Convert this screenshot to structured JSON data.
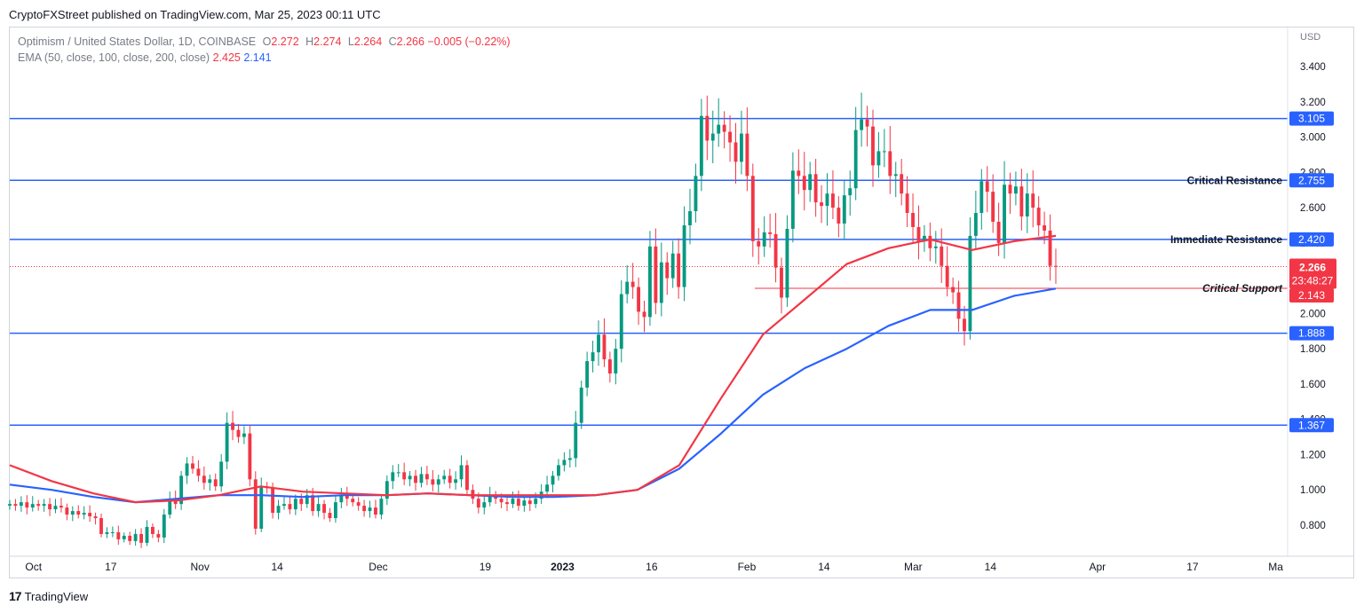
{
  "header": {
    "publish_text": "CryptoFXStreet published on TradingView.com, Mar 25, 2023 00:11 UTC"
  },
  "legend": {
    "symbol": "Optimism / United States Dollar, 1D, COINBASE",
    "o_label": "O",
    "o_value": "2.272",
    "h_label": "H",
    "h_value": "2.274",
    "l_label": "L",
    "l_value": "2.264",
    "c_label": "C",
    "c_value": "2.266",
    "change": "−0.005 (−0.22%)",
    "ema_label": "EMA (50, close, 100, close, 200, close)",
    "ema_val_1": "2.425",
    "ema_val_2": "2.141"
  },
  "footer": {
    "brand": "TradingView"
  },
  "colors": {
    "up": "#089981",
    "down": "#f23645",
    "level": "#2962ff",
    "ema_fast": "#f23645",
    "ema_slow": "#2962ff"
  },
  "chart_data": {
    "type": "candlestick",
    "title": "Optimism / United States Dollar, 1D, COINBASE",
    "currency_label": "USD",
    "ylim": [
      0.65,
      3.5
    ],
    "y_ticks": [
      "0.800",
      "1.000",
      "1.200",
      "1.400",
      "1.600",
      "1.800",
      "2.000",
      "2.200",
      "2.400",
      "2.600",
      "2.800",
      "3.000",
      "3.200",
      "3.400"
    ],
    "x_ticks": [
      {
        "label": "Oct",
        "day": 4
      },
      {
        "label": "17",
        "day": 17
      },
      {
        "label": "Nov",
        "day": 32
      },
      {
        "label": "14",
        "day": 45
      },
      {
        "label": "Dec",
        "day": 62
      },
      {
        "label": "19",
        "day": 80
      },
      {
        "label": "2023",
        "day": 93
      },
      {
        "label": "16",
        "day": 108
      },
      {
        "label": "Feb",
        "day": 124
      },
      {
        "label": "14",
        "day": 137
      },
      {
        "label": "Mar",
        "day": 152
      },
      {
        "label": "14",
        "day": 165
      },
      {
        "label": "Apr",
        "day": 183
      },
      {
        "label": "17",
        "day": 199
      },
      {
        "label": "Ma",
        "day": 213
      }
    ],
    "x_range": [
      0,
      215
    ],
    "levels": [
      {
        "value": 3.105,
        "label": "3.105",
        "name": ""
      },
      {
        "value": 2.755,
        "label": "2.755",
        "name": "Critical Resistance"
      },
      {
        "value": 2.42,
        "label": "2.420",
        "name": "Immediate Resistance"
      },
      {
        "value": 1.888,
        "label": "1.888",
        "name": ""
      },
      {
        "value": 1.367,
        "label": "1.367",
        "name": ""
      }
    ],
    "support": {
      "value": 2.143,
      "label": "2.143",
      "name": "Critical Support"
    },
    "last_price": {
      "value": 2.266,
      "label": "2.266",
      "countdown": "23:48:27"
    },
    "closes": [
      0.92,
      0.91,
      0.93,
      0.9,
      0.92,
      0.91,
      0.92,
      0.89,
      0.91,
      0.9,
      0.86,
      0.88,
      0.86,
      0.87,
      0.85,
      0.84,
      0.75,
      0.76,
      0.76,
      0.72,
      0.74,
      0.71,
      0.75,
      0.7,
      0.79,
      0.75,
      0.73,
      0.86,
      0.95,
      0.92,
      1.08,
      1.15,
      1.12,
      1.08,
      1.04,
      1.06,
      1.02,
      1.16,
      1.38,
      1.34,
      1.3,
      1.32,
      1.06,
      0.78,
      1.02,
      1.01,
      0.87,
      0.91,
      0.92,
      0.89,
      0.95,
      0.92,
      0.97,
      0.88,
      0.92,
      0.87,
      0.84,
      0.93,
      0.97,
      0.95,
      0.93,
      0.91,
      0.88,
      0.9,
      0.86,
      0.95,
      1.05,
      1.1,
      1.1,
      1.06,
      1.08,
      1.04,
      1.09,
      1.06,
      1.03,
      1.06,
      1.08,
      1.04,
      1.06,
      1.14,
      1.0,
      0.95,
      0.9,
      0.93,
      0.97,
      0.95,
      0.93,
      0.92,
      0.95,
      0.91,
      0.94,
      0.92,
      0.95,
      0.99,
      1.03,
      1.08,
      1.14,
      1.17,
      1.18,
      1.38,
      1.58,
      1.73,
      1.78,
      1.88,
      1.74,
      1.66,
      1.8,
      2.11,
      2.18,
      2.15,
      2.01,
      1.98,
      2.38,
      2.06,
      2.29,
      2.2,
      2.34,
      2.15,
      2.5,
      2.58,
      2.78,
      3.12,
      2.98,
      3.02,
      3.07,
      3.03,
      2.97,
      2.86,
      3.02,
      2.78,
      2.41,
      2.38,
      2.46,
      2.45,
      2.26,
      2.09,
      2.48,
      2.81,
      2.78,
      2.7,
      2.79,
      2.63,
      2.61,
      2.68,
      2.6,
      2.51,
      2.67,
      2.71,
      3.04,
      3.1,
      3.06,
      2.84,
      2.92,
      2.92,
      2.78,
      2.79,
      2.68,
      2.57,
      2.49,
      2.41,
      2.44,
      2.37,
      2.38,
      2.27,
      2.15,
      2.12,
      1.97,
      1.9,
      2.44,
      2.57,
      2.75,
      2.69,
      2.52,
      2.4,
      2.73,
      2.68,
      2.72,
      2.55,
      2.68,
      2.6,
      2.5,
      2.47,
      2.27,
      2.266
    ],
    "ema_fast": [
      1.14,
      1.05,
      0.98,
      0.93,
      0.94,
      0.97,
      1.02,
      0.99,
      0.98,
      0.97,
      0.98,
      0.97,
      0.97,
      0.97,
      0.97,
      1.0,
      1.14,
      1.52,
      1.88,
      2.08,
      2.28,
      2.37,
      2.42,
      2.36,
      2.41,
      2.44
    ],
    "ema_slow": [
      1.03,
      1.0,
      0.96,
      0.93,
      0.95,
      0.97,
      0.97,
      0.96,
      0.97,
      0.97,
      0.98,
      0.97,
      0.96,
      0.96,
      0.97,
      1.0,
      1.12,
      1.32,
      1.54,
      1.69,
      1.8,
      1.93,
      2.02,
      2.02,
      2.1,
      2.141
    ]
  }
}
